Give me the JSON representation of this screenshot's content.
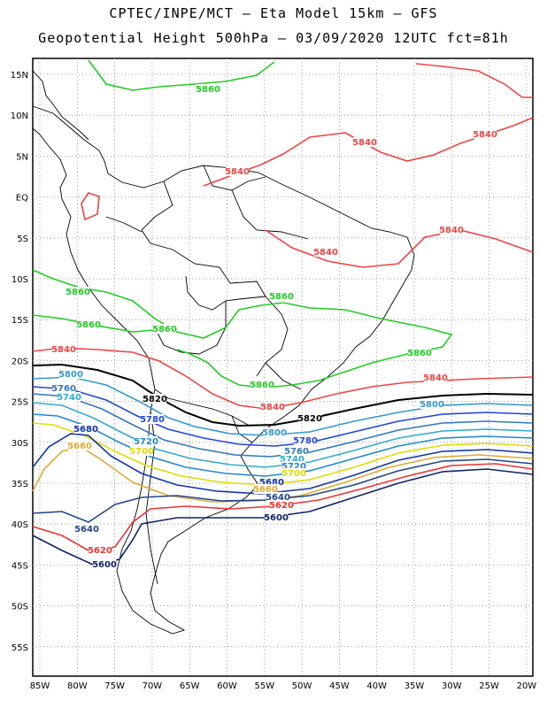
{
  "titles": {
    "line1": "CPTEC/INPE/MCT –  Eta Model 15km – GFS",
    "line2": "Geopotential Height 500hPa – 03/09/2020 12UTC fct=81h"
  },
  "axes": {
    "lat_labels": [
      "15N",
      "10N",
      "5N",
      "EQ",
      "5S",
      "10S",
      "15S",
      "20S",
      "25S",
      "30S",
      "35S",
      "40S",
      "45S",
      "50S",
      "55S"
    ],
    "lon_labels": [
      "85W",
      "80W",
      "75W",
      "70W",
      "65W",
      "60W",
      "55W",
      "50W",
      "45W",
      "40W",
      "35W",
      "30W",
      "25W",
      "20W"
    ]
  },
  "contours": [
    {
      "value": "5860",
      "color": "#22cc22"
    },
    {
      "value": "5840",
      "color": "#ee4444"
    },
    {
      "value": "5820",
      "color": "#000000"
    },
    {
      "value": "5800",
      "color": "#3399cc"
    },
    {
      "value": "5780",
      "color": "#2244dd"
    },
    {
      "value": "5760",
      "color": "#3377bb"
    },
    {
      "value": "5740",
      "color": "#33aacc"
    },
    {
      "value": "5720",
      "color": "#2288cc"
    },
    {
      "value": "5700",
      "color": "#dddd00"
    },
    {
      "value": "5680",
      "color": "#1133aa"
    },
    {
      "value": "5660",
      "color": "#ddaa33"
    },
    {
      "value": "5640",
      "color": "#224488"
    },
    {
      "value": "5620",
      "color": "#ee3333"
    },
    {
      "value": "5600",
      "color": "#112266"
    }
  ],
  "contour_labels": [
    {
      "text": "5860",
      "color": "#22cc22"
    },
    {
      "text": "5860",
      "color": "#22cc22"
    },
    {
      "text": "5860",
      "color": "#22cc22"
    },
    {
      "text": "5860",
      "color": "#22cc22"
    },
    {
      "text": "5860",
      "color": "#22cc22"
    },
    {
      "text": "5860",
      "color": "#22cc22"
    },
    {
      "text": "5860",
      "color": "#22cc22"
    },
    {
      "text": "5840",
      "color": "#ee4444"
    },
    {
      "text": "5840",
      "color": "#ee4444"
    },
    {
      "text": "5840",
      "color": "#ee4444"
    },
    {
      "text": "5840",
      "color": "#ee4444"
    },
    {
      "text": "5840",
      "color": "#ee4444"
    },
    {
      "text": "5840",
      "color": "#ee4444"
    },
    {
      "text": "5840",
      "color": "#ee4444"
    },
    {
      "text": "5840",
      "color": "#ee4444"
    },
    {
      "text": "5820",
      "color": "#000000"
    },
    {
      "text": "5820",
      "color": "#000000"
    },
    {
      "text": "5800",
      "color": "#3399cc"
    },
    {
      "text": "5800",
      "color": "#3399cc"
    },
    {
      "text": "5800",
      "color": "#3399cc"
    },
    {
      "text": "5780",
      "color": "#2244dd"
    },
    {
      "text": "5780",
      "color": "#2244dd"
    },
    {
      "text": "5760",
      "color": "#3377bb"
    },
    {
      "text": "5760",
      "color": "#3377bb"
    },
    {
      "text": "5740",
      "color": "#33aacc"
    },
    {
      "text": "5740",
      "color": "#33aacc"
    },
    {
      "text": "5720",
      "color": "#2288cc"
    },
    {
      "text": "5720",
      "color": "#2288cc"
    },
    {
      "text": "5700",
      "color": "#dddd00"
    },
    {
      "text": "5700",
      "color": "#dddd00"
    },
    {
      "text": "5680",
      "color": "#1133aa"
    },
    {
      "text": "5680",
      "color": "#1133aa"
    },
    {
      "text": "5660",
      "color": "#ddaa33"
    },
    {
      "text": "5660",
      "color": "#ddaa33"
    },
    {
      "text": "5640",
      "color": "#224488"
    },
    {
      "text": "5640",
      "color": "#224488"
    },
    {
      "text": "5620",
      "color": "#ee3333"
    },
    {
      "text": "5620",
      "color": "#ee3333"
    },
    {
      "text": "5600",
      "color": "#112266"
    },
    {
      "text": "5600",
      "color": "#112266"
    }
  ]
}
